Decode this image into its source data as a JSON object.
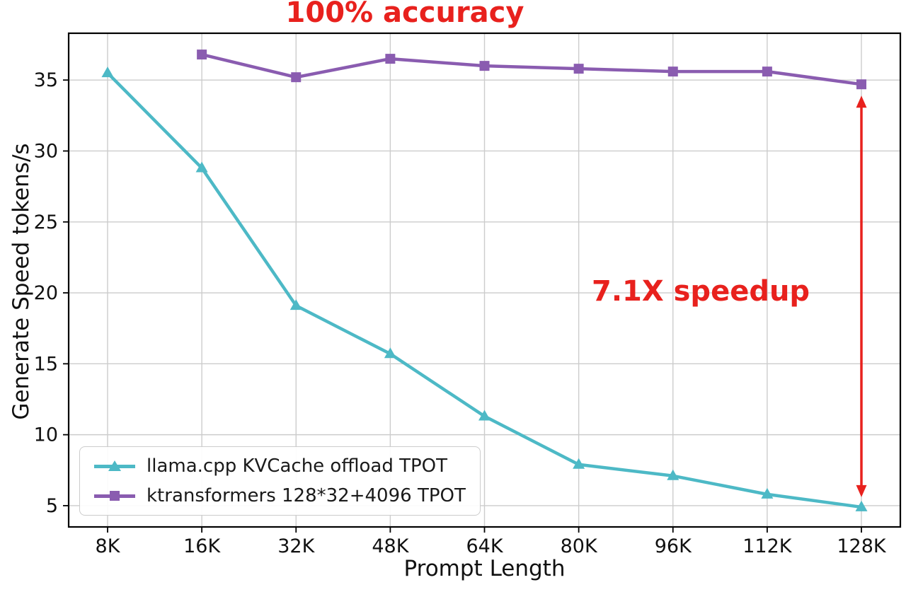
{
  "chart_data": {
    "type": "line",
    "xlabel": "Prompt Length",
    "ylabel": "Generate Speed tokens/s",
    "categories": [
      "8K",
      "16K",
      "32K",
      "48K",
      "64K",
      "80K",
      "96K",
      "112K",
      "128K"
    ],
    "yticks": [
      5,
      10,
      15,
      20,
      25,
      30,
      35
    ],
    "ylim": [
      3.5,
      38.3
    ],
    "grid": true,
    "grid_color": "#cccccc",
    "legend_position": "lower left",
    "series": [
      {
        "name": "llama.cpp KVCache offload TPOT",
        "color": "#4db9c6",
        "marker": "triangle",
        "values": [
          35.5,
          28.8,
          19.1,
          15.7,
          11.3,
          7.9,
          7.1,
          5.8,
          4.9
        ]
      },
      {
        "name": "ktransformers 128*32+4096 TPOT",
        "color": "#8a5cb0",
        "marker": "square",
        "values": [
          null,
          36.8,
          35.2,
          36.5,
          36.0,
          35.8,
          35.6,
          35.6,
          34.7
        ]
      }
    ],
    "annotations": {
      "accuracy": {
        "text": "100% accuracy",
        "color": "#e8211d"
      },
      "speedup": {
        "text": "7.1X speedup",
        "color": "#e8211d"
      }
    },
    "speedup_arrow": {
      "x_category": "128K",
      "from": 34.7,
      "to": 4.9,
      "color": "#e8211d"
    }
  }
}
